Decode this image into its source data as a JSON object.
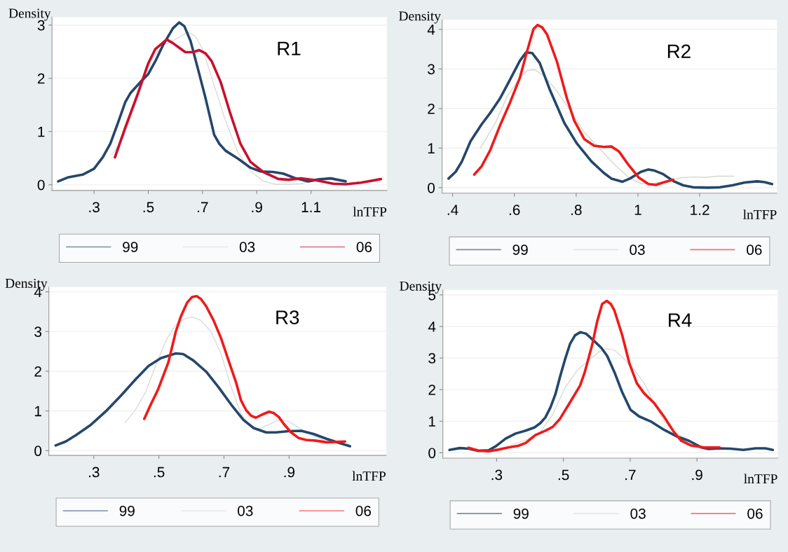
{
  "chart_data": [
    {
      "type": "line",
      "xlabel": "lnTFP",
      "ylabel": "Density",
      "annotations": [
        "R1"
      ],
      "grid": "y",
      "legend": "bottom",
      "xlim": [
        0.145,
        1.38
      ],
      "ylim": [
        -0.107,
        3.15
      ],
      "xticks": [
        {
          "value": 0.3,
          "label": ".3"
        },
        {
          "value": 0.5,
          "label": ".5"
        },
        {
          "value": 0.7,
          "label": ".7"
        },
        {
          "value": 0.9,
          "label": ".9"
        },
        1.1
      ],
      "yticks": [
        0,
        1,
        2,
        3
      ],
      "series": [
        {
          "name": "99",
          "color": "#24476b",
          "x": [
            0.168,
            0.203,
            0.258,
            0.3,
            0.332,
            0.36,
            0.388,
            0.415,
            0.434,
            0.471,
            0.5,
            0.526,
            0.554,
            0.591,
            0.614,
            0.633,
            0.656,
            0.683,
            0.711,
            0.743,
            0.762,
            0.785,
            0.831,
            0.877,
            0.914,
            0.96,
            0.997,
            1.044,
            1.09,
            1.127,
            1.173,
            1.228
          ],
          "values": [
            0.064,
            0.137,
            0.19,
            0.3,
            0.515,
            0.77,
            1.16,
            1.55,
            1.72,
            1.93,
            2.08,
            2.32,
            2.62,
            2.94,
            3.05,
            2.98,
            2.7,
            2.18,
            1.63,
            0.94,
            0.77,
            0.64,
            0.49,
            0.32,
            0.25,
            0.24,
            0.21,
            0.12,
            0.064,
            0.1,
            0.12,
            0.064
          ]
        },
        {
          "name": "03",
          "color": "#d9dcd9",
          "x": [
            0.365,
            0.406,
            0.462,
            0.508,
            0.554,
            0.6,
            0.646,
            0.674,
            0.702,
            0.739,
            0.785,
            0.831,
            0.877,
            0.924,
            0.97,
            1.016,
            1.062,
            1.099
          ],
          "values": [
            0.56,
            0.86,
            1.63,
            2.32,
            2.62,
            2.73,
            2.87,
            2.79,
            2.53,
            1.93,
            1.2,
            0.6,
            0.26,
            0.064,
            0.01,
            0.01,
            0.02,
            0.06
          ]
        },
        {
          "name": "06",
          "color": "#c8102e",
          "x": [
            0.377,
            0.415,
            0.462,
            0.499,
            0.526,
            0.568,
            0.591,
            0.637,
            0.665,
            0.688,
            0.711,
            0.734,
            0.767,
            0.803,
            0.84,
            0.877,
            0.924,
            0.979,
            1.016,
            1.062,
            1.117,
            1.182,
            1.228,
            1.284,
            1.358
          ],
          "values": [
            0.515,
            1.07,
            1.72,
            2.27,
            2.55,
            2.73,
            2.66,
            2.49,
            2.49,
            2.53,
            2.47,
            2.32,
            1.93,
            1.33,
            0.77,
            0.43,
            0.24,
            0.11,
            0.094,
            0.12,
            0.086,
            0.02,
            0.01,
            0.04,
            0.107
          ]
        }
      ]
    },
    {
      "type": "line",
      "xlabel": "lnTFP",
      "ylabel": "Density",
      "annotations": [
        "R2"
      ],
      "grid": "y",
      "legend": "bottom",
      "xlim": [
        0.366,
        1.45
      ],
      "ylim": [
        -0.14,
        4.24
      ],
      "xticks": [
        {
          "value": 0.4,
          "label": ".4"
        },
        {
          "value": 0.6,
          "label": ".6"
        },
        {
          "value": 0.8,
          "label": ".8"
        },
        1,
        1.2
      ],
      "yticks": [
        0,
        1,
        2,
        3,
        4
      ],
      "series": [
        {
          "name": "99",
          "color": "#24476b",
          "x": [
            0.387,
            0.41,
            0.43,
            0.458,
            0.494,
            0.522,
            0.554,
            0.578,
            0.618,
            0.638,
            0.658,
            0.682,
            0.714,
            0.762,
            0.802,
            0.85,
            0.89,
            0.914,
            0.95,
            0.974,
            1.01,
            1.034,
            1.054,
            1.082,
            1.114,
            1.146,
            1.178,
            1.226,
            1.266,
            1.306,
            1.346,
            1.386,
            1.41,
            1.434
          ],
          "values": [
            0.23,
            0.4,
            0.66,
            1.17,
            1.6,
            1.89,
            2.26,
            2.61,
            3.21,
            3.42,
            3.4,
            3.15,
            2.49,
            1.63,
            1.12,
            0.66,
            0.37,
            0.23,
            0.15,
            0.23,
            0.4,
            0.46,
            0.43,
            0.34,
            0.17,
            0.06,
            0.01,
            0.0,
            0.01,
            0.06,
            0.13,
            0.16,
            0.14,
            0.09
          ]
        },
        {
          "name": "03",
          "color": "#d5d8cc",
          "x": [
            0.49,
            0.538,
            0.578,
            0.618,
            0.642,
            0.666,
            0.698,
            0.738,
            0.778,
            0.826,
            0.874,
            0.922,
            0.97,
            1.01,
            1.05,
            1.098,
            1.138,
            1.178,
            1.218,
            1.258,
            1.31
          ],
          "values": [
            1.0,
            1.63,
            2.32,
            2.78,
            2.96,
            2.98,
            2.81,
            2.44,
            1.98,
            1.4,
            1.0,
            0.6,
            0.26,
            0.1,
            0.11,
            0.17,
            0.25,
            0.27,
            0.26,
            0.29,
            0.29
          ]
        },
        {
          "name": "06",
          "color": "#f01a1a",
          "x": [
            0.47,
            0.494,
            0.522,
            0.554,
            0.586,
            0.618,
            0.642,
            0.662,
            0.675,
            0.69,
            0.706,
            0.738,
            0.77,
            0.794,
            0.826,
            0.858,
            0.89,
            0.914,
            0.938,
            0.97,
            1.002,
            1.034,
            1.058,
            1.082,
            1.114
          ],
          "values": [
            0.33,
            0.54,
            0.95,
            1.58,
            2.15,
            2.78,
            3.47,
            4.01,
            4.11,
            4.05,
            3.87,
            3.18,
            2.26,
            1.69,
            1.23,
            1.06,
            1.03,
            1.04,
            0.92,
            0.57,
            0.26,
            0.09,
            0.07,
            0.13,
            0.2
          ]
        }
      ]
    },
    {
      "type": "line",
      "xlabel": "lnTFP",
      "ylabel": "Density",
      "annotations": [
        "R3"
      ],
      "grid": "y",
      "legend": "bottom",
      "xlim": [
        0.162,
        1.198
      ],
      "ylim": [
        -0.12,
        4.12
      ],
      "xticks": [
        {
          "value": 0.3,
          "label": ".3"
        },
        {
          "value": 0.5,
          "label": ".5"
        },
        {
          "value": 0.7,
          "label": ".7"
        },
        {
          "value": 0.9,
          "label": ".9"
        }
      ],
      "yticks": [
        0,
        1,
        2,
        3,
        4
      ],
      "series": [
        {
          "name": "99",
          "color": "#24476b",
          "x": [
            0.183,
            0.214,
            0.245,
            0.291,
            0.337,
            0.383,
            0.429,
            0.468,
            0.506,
            0.552,
            0.575,
            0.606,
            0.645,
            0.683,
            0.722,
            0.76,
            0.791,
            0.829,
            0.86,
            0.898,
            0.937,
            0.975,
            1.014,
            1.052,
            1.087
          ],
          "values": [
            0.13,
            0.23,
            0.39,
            0.65,
            0.99,
            1.38,
            1.8,
            2.13,
            2.33,
            2.45,
            2.43,
            2.27,
            1.99,
            1.6,
            1.16,
            0.77,
            0.57,
            0.46,
            0.46,
            0.49,
            0.5,
            0.42,
            0.3,
            0.2,
            0.11
          ]
        },
        {
          "name": "03",
          "color": "#d9dcd9",
          "x": [
            0.396,
            0.429,
            0.46,
            0.491,
            0.522,
            0.552,
            0.583,
            0.606,
            0.629,
            0.66,
            0.691,
            0.722,
            0.752,
            0.783,
            0.806,
            0.837,
            0.868,
            0.898,
            0.937,
            0.975,
            1.014
          ],
          "values": [
            0.7,
            1.04,
            1.49,
            2.16,
            2.78,
            3.17,
            3.34,
            3.36,
            3.28,
            3.0,
            2.44,
            1.6,
            0.93,
            0.6,
            0.54,
            0.65,
            0.77,
            0.74,
            0.54,
            0.37,
            0.23
          ]
        },
        {
          "name": "06",
          "color": "#f01a1a",
          "x": [
            0.455,
            0.475,
            0.498,
            0.529,
            0.552,
            0.568,
            0.587,
            0.602,
            0.616,
            0.629,
            0.645,
            0.668,
            0.691,
            0.714,
            0.737,
            0.752,
            0.768,
            0.783,
            0.798,
            0.818,
            0.838,
            0.852,
            0.868,
            0.883,
            0.906,
            0.929,
            0.952,
            0.983,
            1.014,
            1.045,
            1.072
          ],
          "values": [
            0.8,
            1.16,
            1.55,
            2.22,
            3.0,
            3.39,
            3.73,
            3.87,
            3.89,
            3.82,
            3.64,
            3.28,
            2.83,
            2.27,
            1.72,
            1.27,
            1.02,
            0.88,
            0.83,
            0.91,
            0.98,
            0.95,
            0.85,
            0.68,
            0.46,
            0.32,
            0.27,
            0.25,
            0.21,
            0.22,
            0.23
          ]
        }
      ]
    },
    {
      "type": "line",
      "xlabel": "lnTFP",
      "ylabel": "Density",
      "annotations": [
        "R4"
      ],
      "grid": "y",
      "legend": "bottom",
      "xlim": [
        0.139,
        1.142
      ],
      "ylim": [
        -0.17,
        5.16
      ],
      "xticks": [
        {
          "value": 0.3,
          "label": ".3"
        },
        {
          "value": 0.5,
          "label": ".5"
        },
        {
          "value": 0.7,
          "label": ".7"
        },
        {
          "value": 0.9,
          "label": ".9"
        }
      ],
      "yticks": [
        0,
        1,
        2,
        3,
        4,
        5
      ],
      "series": [
        {
          "name": "99",
          "color": "#24476b",
          "x": [
            0.159,
            0.19,
            0.216,
            0.246,
            0.276,
            0.298,
            0.327,
            0.357,
            0.387,
            0.413,
            0.431,
            0.446,
            0.461,
            0.476,
            0.49,
            0.505,
            0.52,
            0.535,
            0.551,
            0.568,
            0.59,
            0.613,
            0.631,
            0.653,
            0.676,
            0.701,
            0.727,
            0.764,
            0.801,
            0.839,
            0.876,
            0.913,
            0.935,
            0.964,
            1.001,
            1.039,
            1.076,
            1.105,
            1.127
          ],
          "values": [
            0.09,
            0.15,
            0.13,
            0.06,
            0.08,
            0.21,
            0.45,
            0.61,
            0.7,
            0.8,
            0.94,
            1.12,
            1.43,
            1.85,
            2.41,
            2.96,
            3.45,
            3.72,
            3.82,
            3.77,
            3.56,
            3.33,
            3.07,
            2.55,
            1.92,
            1.36,
            1.15,
            0.98,
            0.73,
            0.52,
            0.38,
            0.17,
            0.12,
            0.14,
            0.13,
            0.09,
            0.14,
            0.14,
            0.09
          ]
        },
        {
          "name": "03",
          "color": "#d9dcd9",
          "x": [
            0.342,
            0.387,
            0.431,
            0.468,
            0.505,
            0.542,
            0.579,
            0.609,
            0.631,
            0.653,
            0.683,
            0.713,
            0.742,
            0.772,
            0.801,
            0.831,
            0.868,
            0.905,
            0.935,
            0.964
          ],
          "values": [
            0.24,
            0.4,
            0.66,
            1.22,
            2.06,
            2.62,
            2.96,
            3.21,
            3.3,
            3.25,
            2.96,
            2.62,
            2.2,
            1.57,
            1.01,
            0.66,
            0.45,
            0.24,
            0.16,
            0.14
          ]
        },
        {
          "name": "06",
          "color": "#f01a1a",
          "x": [
            0.216,
            0.246,
            0.276,
            0.305,
            0.335,
            0.364,
            0.387,
            0.416,
            0.446,
            0.468,
            0.49,
            0.52,
            0.55,
            0.564,
            0.587,
            0.601,
            0.616,
            0.63,
            0.642,
            0.653,
            0.676,
            0.698,
            0.72,
            0.742,
            0.772,
            0.801,
            0.831,
            0.853,
            0.883,
            0.92,
            0.968
          ],
          "values": [
            0.16,
            0.07,
            0.05,
            0.1,
            0.17,
            0.22,
            0.31,
            0.56,
            0.7,
            0.82,
            1.08,
            1.6,
            2.13,
            2.55,
            3.45,
            4.15,
            4.71,
            4.81,
            4.71,
            4.5,
            3.73,
            2.82,
            2.2,
            1.88,
            1.57,
            1.15,
            0.66,
            0.38,
            0.23,
            0.17,
            0.17
          ]
        }
      ]
    }
  ]
}
